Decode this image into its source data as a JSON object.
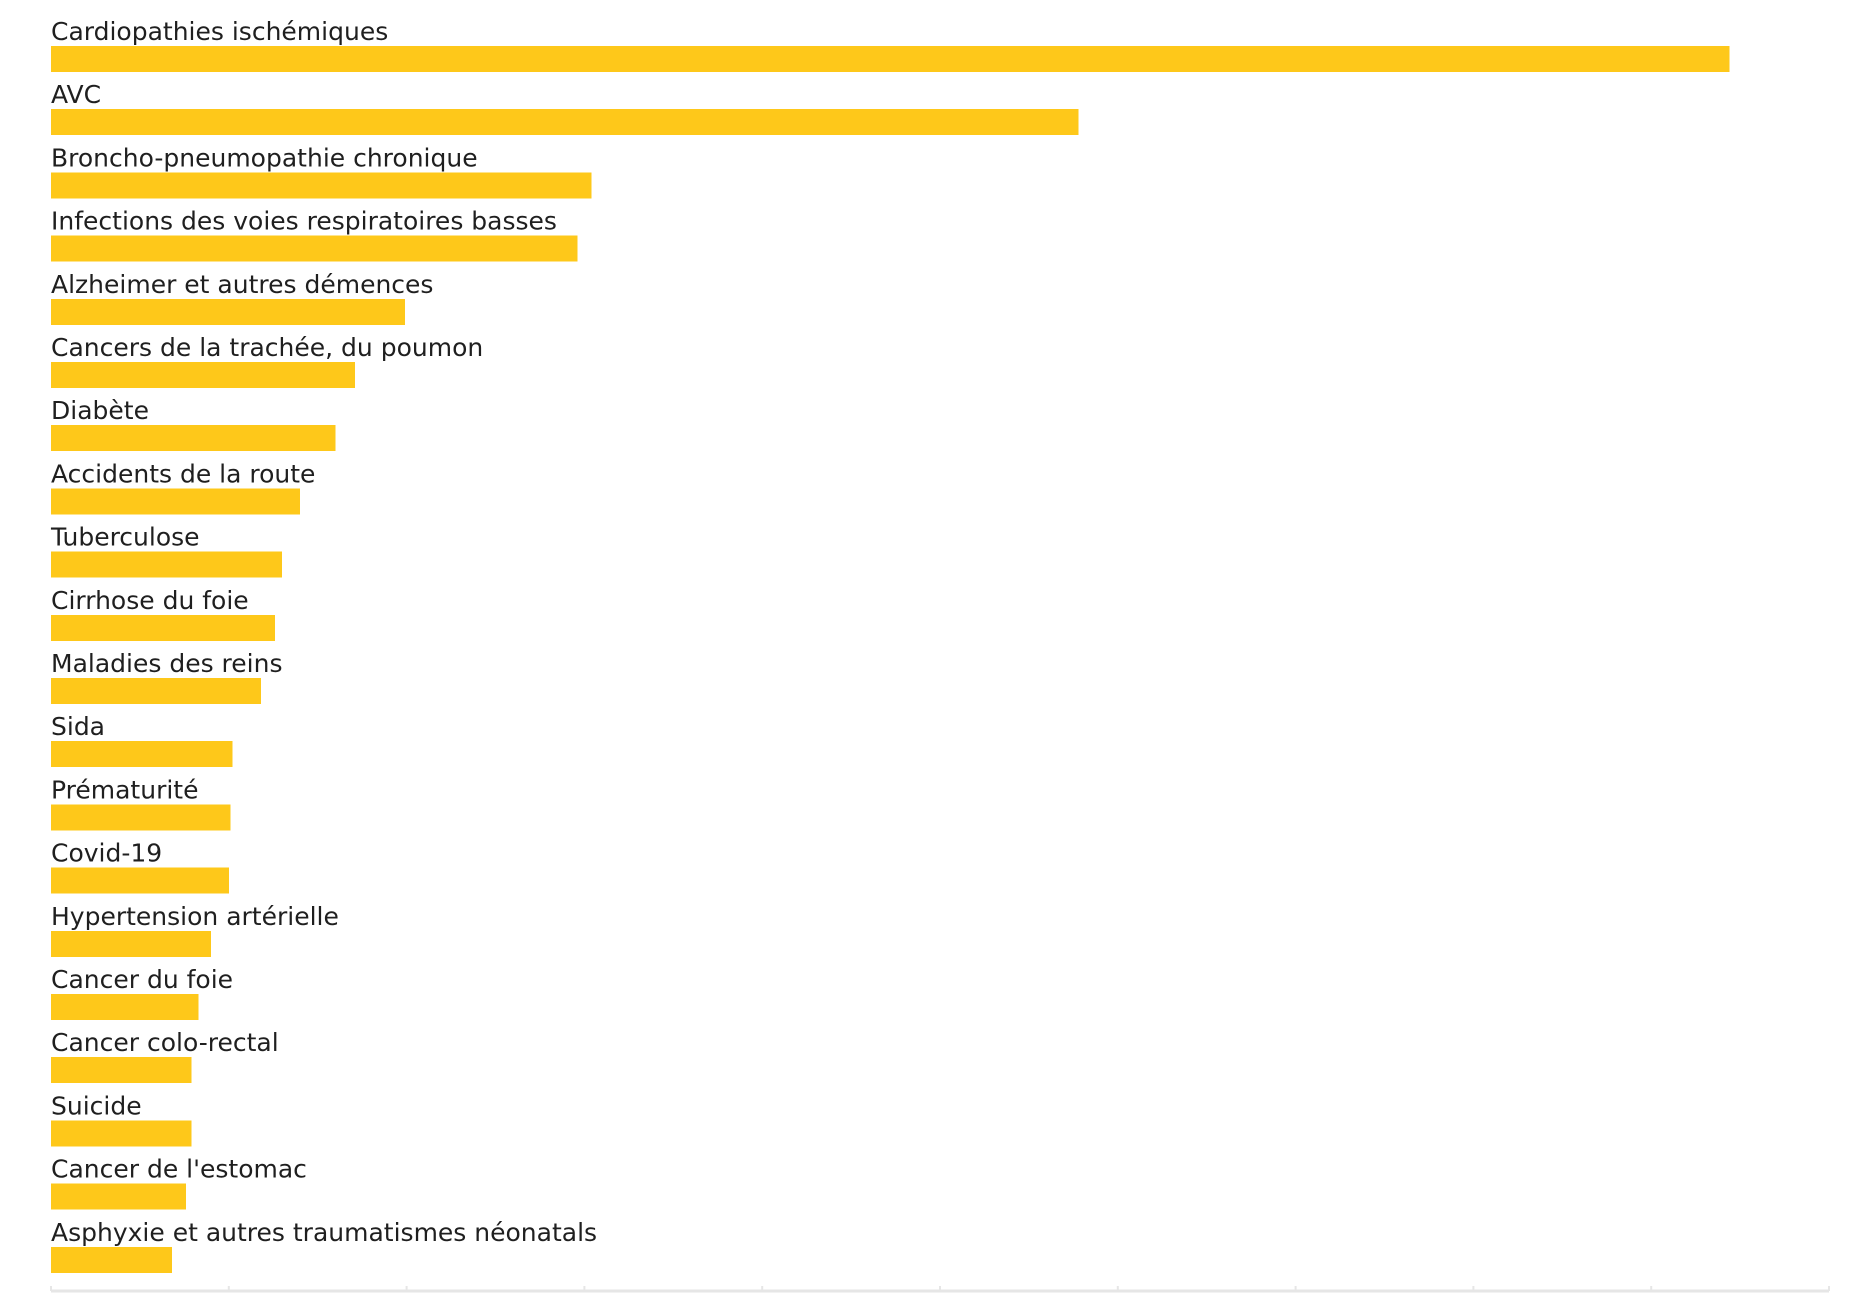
{
  "chart_data": {
    "type": "bar",
    "orientation": "horizontal",
    "bar_color": "#fec81a",
    "title": "",
    "xlabel": "",
    "ylabel": "",
    "xlim": [
      0,
      10
    ],
    "x_tick_labels_shown": false,
    "grid": false,
    "legend": "none",
    "categories": [
      "Cardiopathies ischémiques",
      "AVC",
      "Broncho-pneumopathie chronique",
      "Infections des voies respiratoires basses",
      "Alzheimer et autres démences",
      "Cancers de la trachée, du poumon",
      "Diabète",
      "Accidents de la route",
      "Tuberculose",
      "Cirrhose du foie",
      "Maladies des reins",
      "Sida",
      "Prématurité",
      "Covid-19",
      "Hypertension artérielle",
      "Cancer du foie",
      "Cancer colo-rectal",
      "Suicide",
      "Cancer de l'estomac",
      "Asphyxie et autres traumatismes néonatals"
    ],
    "values": [
      9.44,
      5.78,
      3.04,
      2.96,
      1.99,
      1.71,
      1.6,
      1.4,
      1.3,
      1.26,
      1.18,
      1.02,
      1.01,
      1.0,
      0.9,
      0.83,
      0.79,
      0.79,
      0.76,
      0.68
    ]
  }
}
